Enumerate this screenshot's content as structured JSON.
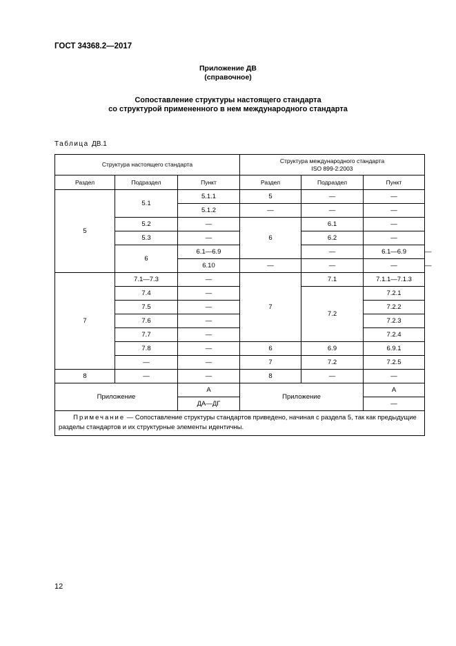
{
  "header": {
    "doc_id": "ГОСТ 34368.2—2017"
  },
  "appendix": {
    "title": "Приложение ДВ",
    "subtitle": "(справочное)"
  },
  "heading": {
    "line1": "Сопоставление структуры настоящего стандарта",
    "line2": "со структурой примененного в нем международного стандарта"
  },
  "table": {
    "caption_word": "Таблица",
    "caption_num": "ДВ.1",
    "group_headers": [
      "Структура настоящего стандарта",
      "Структура международного стандарта",
      "ISO 899-2:2003"
    ],
    "columns": [
      "Раздел",
      "Подраздел",
      "Пункт",
      "Раздел",
      "Подраздел",
      "Пункт"
    ],
    "rows": [
      [
        {
          "t": "5",
          "rs": 6
        },
        {
          "t": "5.1",
          "rs": 2
        },
        {
          "t": "5.1.1"
        },
        {
          "t": "5"
        },
        {
          "t": "—"
        },
        {
          "t": "—"
        }
      ],
      [
        {
          "t": "5.1.2"
        },
        {
          "t": "—"
        },
        {
          "t": "—"
        },
        {
          "t": "—"
        }
      ],
      [
        {
          "t": "5.2"
        },
        {
          "t": "—"
        },
        {
          "t": "6",
          "rs": 3
        },
        {
          "t": "6.1"
        },
        {
          "t": "—"
        }
      ],
      [
        {
          "t": "5.3"
        },
        {
          "t": "—"
        },
        {
          "t": "6.2"
        },
        {
          "t": "—"
        }
      ],
      [
        {
          "t": "6",
          "rs": 2
        },
        {
          "t": "6.1—6.9"
        },
        {
          "t": "—"
        },
        {
          "t": "6.1—6.9"
        },
        {
          "t": "—"
        }
      ],
      [
        {
          "t": "6.10"
        },
        {
          "t": "—"
        },
        {
          "t": "—"
        },
        {
          "t": "—"
        },
        {
          "t": "—"
        }
      ],
      [
        {
          "t": "7",
          "rs": 7
        },
        {
          "t": "7.1—7.3"
        },
        {
          "t": "—"
        },
        {
          "t": "7",
          "rs": 5
        },
        {
          "t": "7.1"
        },
        {
          "t": "7.1.1—7.1.3"
        }
      ],
      [
        {
          "t": "7.4"
        },
        {
          "t": "—"
        },
        {
          "t": "7.2",
          "rs": 4
        },
        {
          "t": "7.2.1"
        }
      ],
      [
        {
          "t": "7.5"
        },
        {
          "t": "—"
        },
        {
          "t": "7.2.2"
        }
      ],
      [
        {
          "t": "7.6"
        },
        {
          "t": "—"
        },
        {
          "t": "7.2.3"
        }
      ],
      [
        {
          "t": "7.7"
        },
        {
          "t": "—"
        },
        {
          "t": "7.2.4"
        }
      ],
      [
        {
          "t": "7.8"
        },
        {
          "t": "—"
        },
        {
          "t": "6"
        },
        {
          "t": "6.9"
        },
        {
          "t": "6.9.1"
        }
      ],
      [
        {
          "t": "—"
        },
        {
          "t": "—"
        },
        {
          "t": "7"
        },
        {
          "t": "7.2"
        },
        {
          "t": "7.2.5"
        }
      ],
      [
        {
          "t": "8"
        },
        {
          "t": "—"
        },
        {
          "t": "—"
        },
        {
          "t": "8"
        },
        {
          "t": "—"
        },
        {
          "t": "—"
        }
      ],
      [
        {
          "t": "Приложение",
          "rs": 2,
          "cs": 2
        },
        {
          "t": "А"
        },
        {
          "t": "Приложение",
          "rs": 2,
          "cs": 2
        },
        {
          "t": "А"
        }
      ],
      [
        {
          "t": "ДА—ДГ"
        },
        {
          "t": "—"
        }
      ]
    ],
    "note_label": "Примечание",
    "note_text": " — Сопоставление структуры стандартов приведено, начиная с раздела 5, так как предыдущие разделы стандартов и их структурные элементы идентичны."
  },
  "page_number": "12"
}
